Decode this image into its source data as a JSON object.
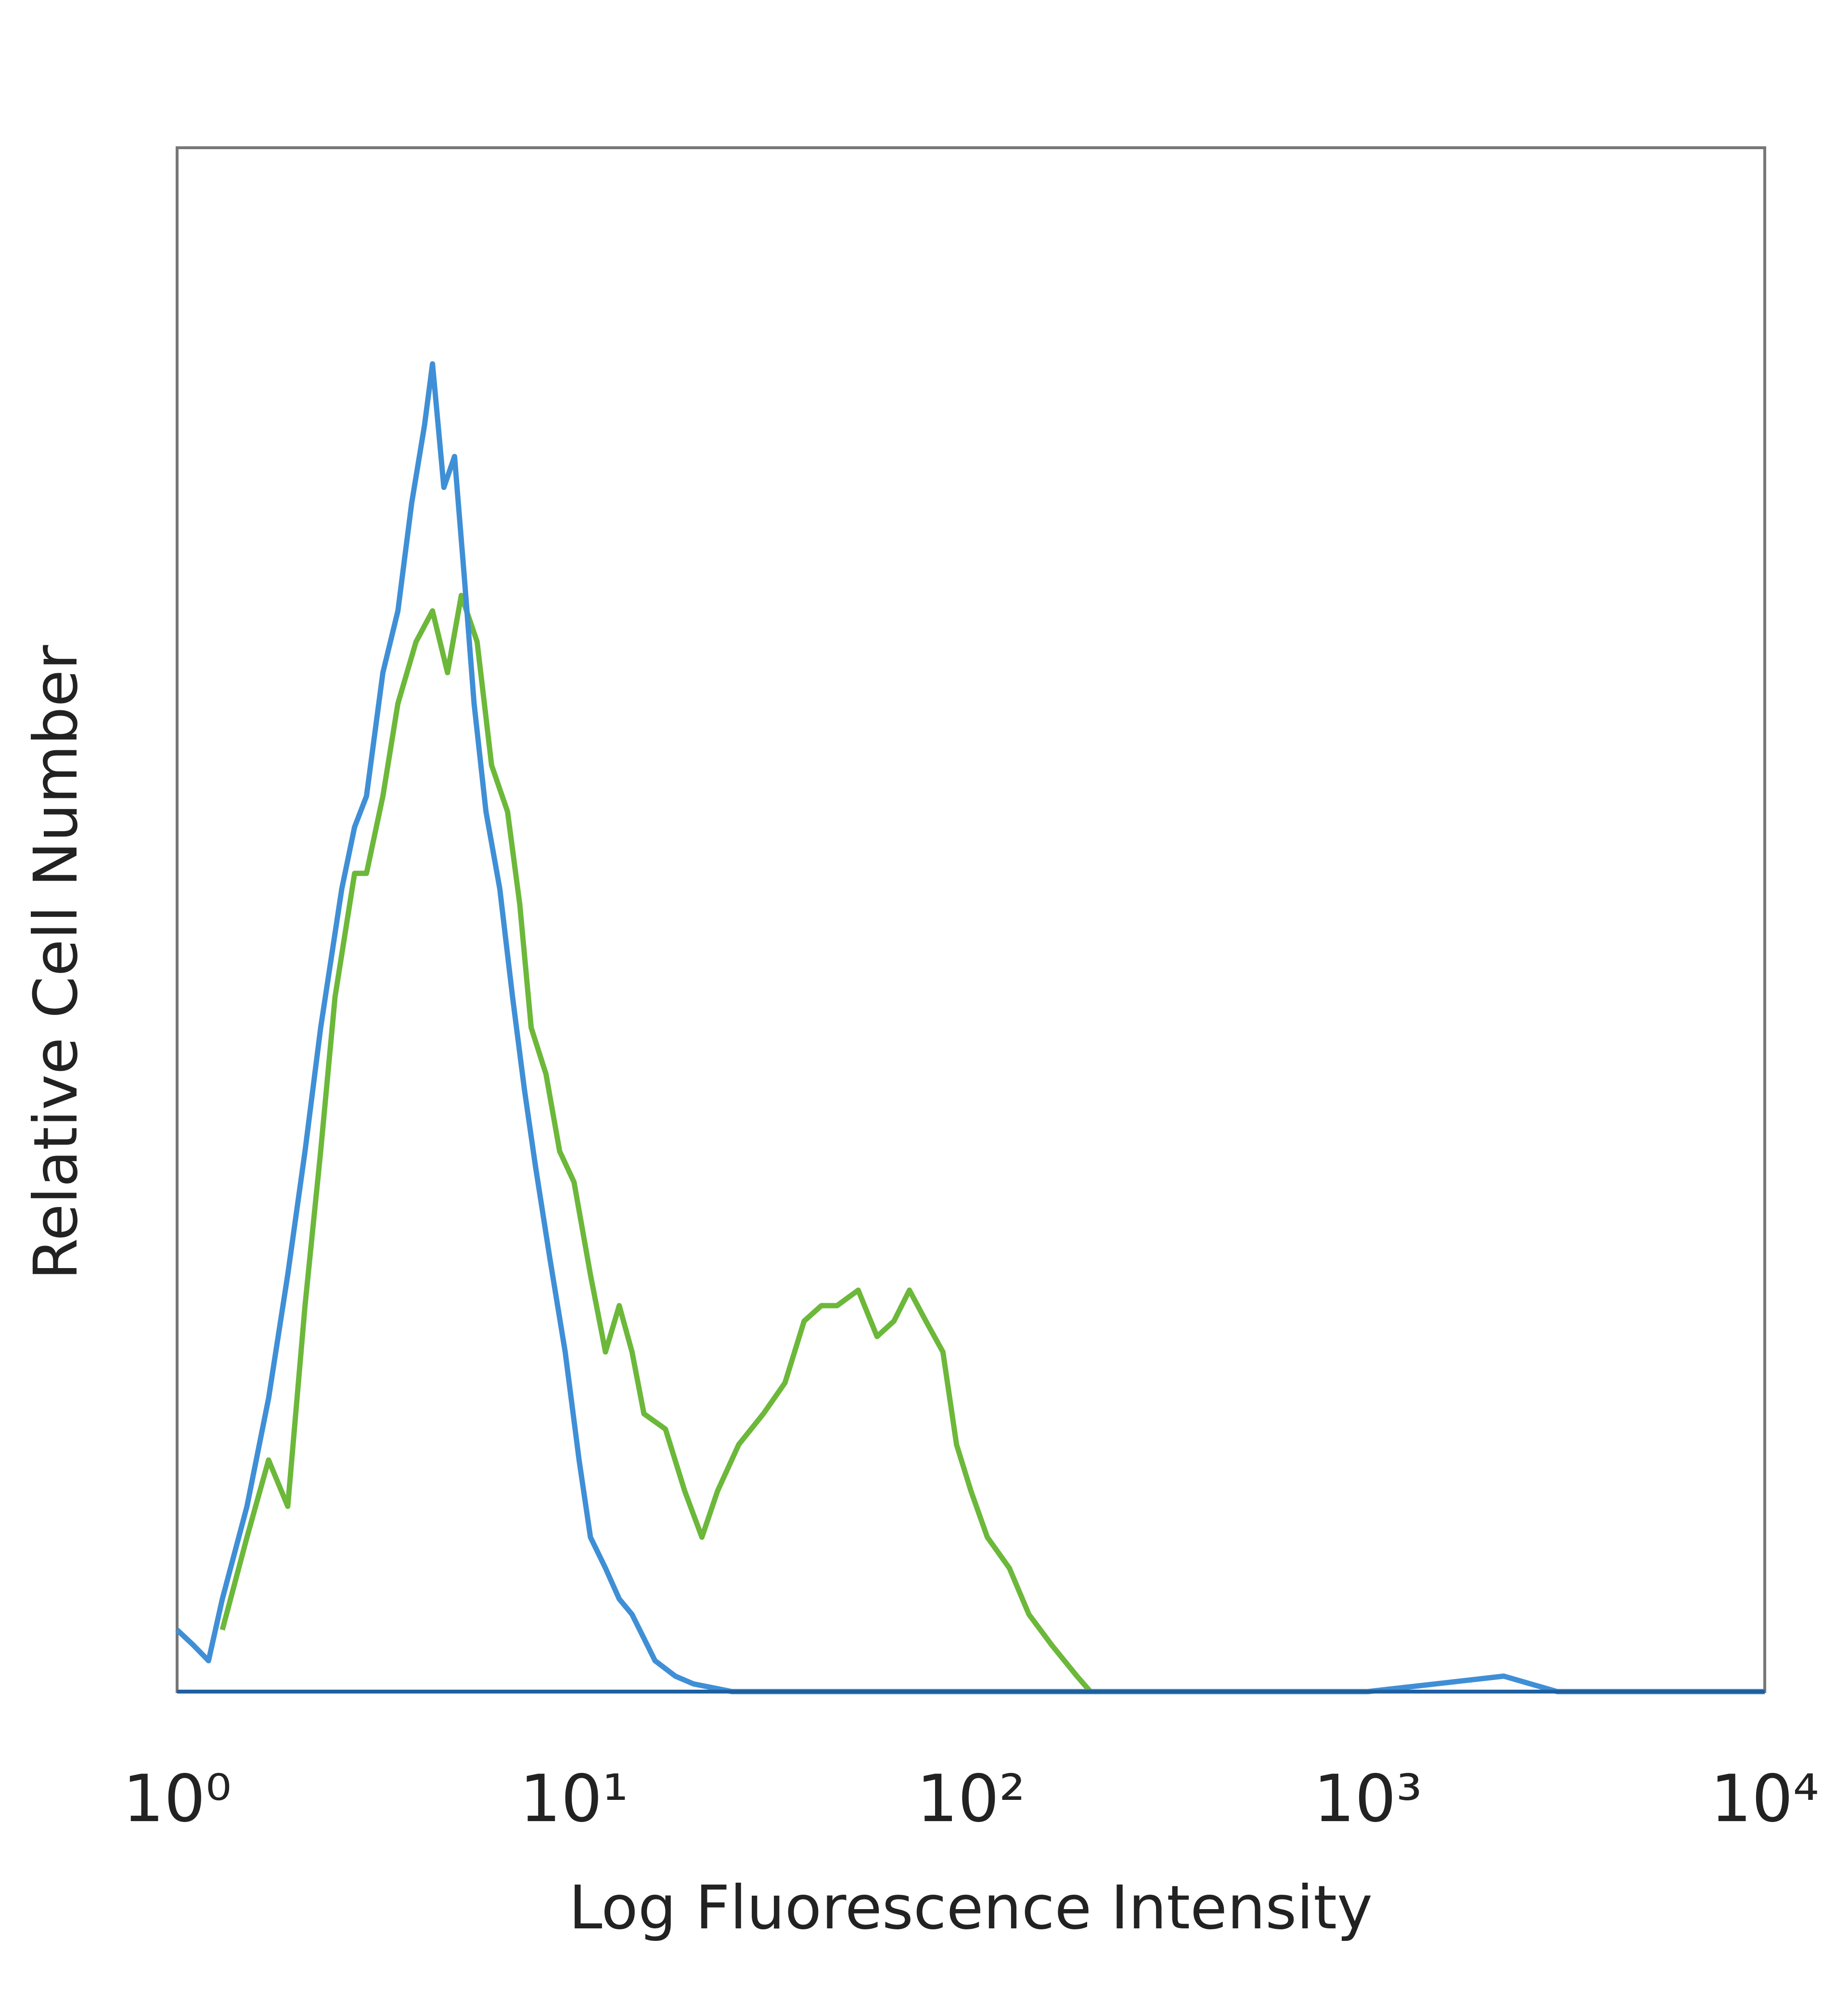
{
  "chart_data": {
    "type": "line",
    "xlabel": "Log Fluorescence Intensity",
    "ylabel": "Relative Cell Number",
    "xscale": "log",
    "xlim": [
      1,
      10000
    ],
    "xticks": [
      {
        "value": 1,
        "label": "10⁰"
      },
      {
        "value": 10,
        "label": "10¹"
      },
      {
        "value": 100,
        "label": "10²"
      },
      {
        "value": 1000,
        "label": "10³"
      },
      {
        "value": 10000,
        "label": "10⁴"
      }
    ],
    "ylim": [
      0,
      100
    ],
    "series": [
      {
        "color": "#6cb83a",
        "x": [
          1.3,
          1.5,
          1.7,
          1.9,
          2.1,
          2.3,
          2.5,
          2.8,
          3.0,
          3.3,
          3.6,
          4.0,
          4.4,
          4.8,
          5.2,
          5.7,
          6.2,
          6.8,
          7.3,
          7.8,
          8.5,
          9.2,
          10,
          11,
          12,
          13,
          14,
          15,
          17,
          19,
          21,
          23,
          26,
          30,
          34,
          38,
          42,
          46,
          52,
          58,
          64,
          70,
          77,
          85,
          92,
          100,
          110,
          125,
          140,
          160,
          185,
          200
        ],
        "values": [
          4,
          10,
          15,
          12,
          25,
          35,
          45,
          53,
          53,
          58,
          64,
          68,
          70,
          66,
          71,
          68,
          60,
          57,
          51,
          43,
          40,
          35,
          33,
          27,
          22,
          25,
          22,
          18,
          17,
          13,
          10,
          13,
          16,
          18,
          20,
          24,
          25,
          25,
          26,
          23,
          24,
          26,
          24,
          22,
          16,
          13,
          10,
          8,
          5,
          3,
          1,
          0
        ]
      },
      {
        "color": "#3f8fd6",
        "x": [
          1.0,
          1.1,
          1.2,
          1.3,
          1.5,
          1.7,
          1.9,
          2.1,
          2.3,
          2.6,
          2.8,
          3.0,
          3.3,
          3.6,
          3.9,
          4.2,
          4.4,
          4.7,
          5.0,
          5.3,
          5.6,
          6.0,
          6.5,
          7.0,
          7.5,
          8.0,
          8.7,
          9.5,
          10.3,
          11,
          12,
          13,
          14,
          16,
          18,
          20,
          25,
          40,
          100,
          1000,
          2200,
          3000,
          10000
        ],
        "values": [
          4,
          3,
          2,
          6,
          12,
          19,
          27,
          35,
          43,
          52,
          56,
          58,
          66,
          70,
          77,
          82,
          86,
          78,
          80,
          72,
          64,
          57,
          52,
          45,
          39,
          34,
          28,
          22,
          15,
          10,
          8,
          6,
          5,
          2,
          1,
          0.5,
          0,
          0,
          0,
          0,
          1,
          0,
          0
        ]
      }
    ]
  }
}
